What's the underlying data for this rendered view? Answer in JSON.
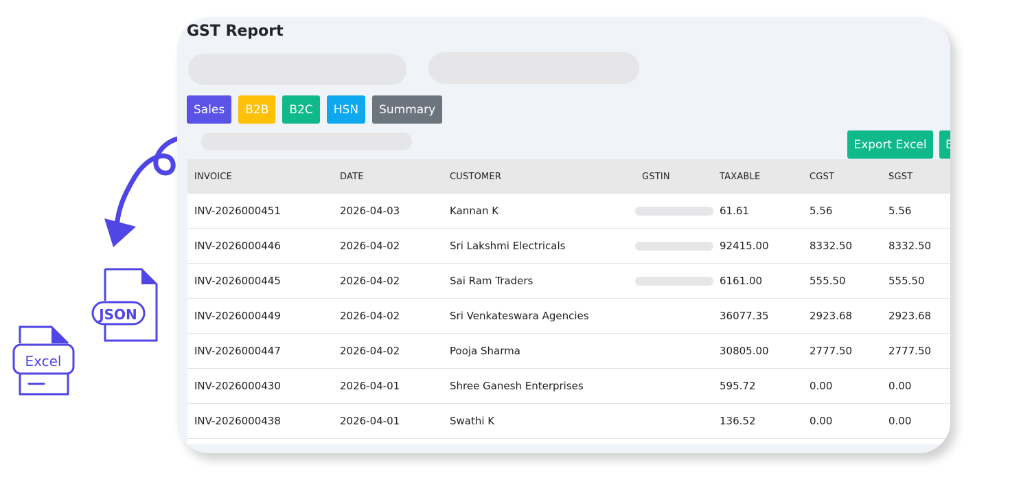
{
  "page": {
    "title": "GST Report"
  },
  "tabs": [
    {
      "label": "Sales",
      "color": "#5b52e8"
    },
    {
      "label": "B2B",
      "color": "#ffc107"
    },
    {
      "label": "B2C",
      "color": "#10b98a"
    },
    {
      "label": "HSN",
      "color": "#0ea8ef"
    },
    {
      "label": "Summary",
      "color": "#6c757d"
    }
  ],
  "actions": {
    "export_excel": "Export Excel",
    "export_next_partial": "E"
  },
  "table": {
    "columns": [
      "INVOICE",
      "DATE",
      "CUSTOMER",
      "GSTIN",
      "TAXABLE",
      "CGST",
      "SGST"
    ],
    "rows": [
      {
        "invoice": "INV-2026000451",
        "date": "2026-04-03",
        "customer": "Kannan K",
        "gstin_masked": true,
        "taxable": "61.61",
        "cgst": "5.56",
        "sgst": "5.56"
      },
      {
        "invoice": "INV-2026000446",
        "date": "2026-04-02",
        "customer": "Sri Lakshmi Electricals",
        "gstin_masked": true,
        "taxable": "92415.00",
        "cgst": "8332.50",
        "sgst": "8332.50"
      },
      {
        "invoice": "INV-2026000445",
        "date": "2026-04-02",
        "customer": "Sai Ram Traders",
        "gstin_masked": true,
        "taxable": "6161.00",
        "cgst": "555.50",
        "sgst": "555.50"
      },
      {
        "invoice": "INV-2026000449",
        "date": "2026-04-02",
        "customer": "Sri Venkateswara Agencies",
        "gstin_masked": false,
        "taxable": "36077.35",
        "cgst": "2923.68",
        "sgst": "2923.68"
      },
      {
        "invoice": "INV-2026000447",
        "date": "2026-04-02",
        "customer": "Pooja Sharma",
        "gstin_masked": false,
        "taxable": "30805.00",
        "cgst": "2777.50",
        "sgst": "2777.50"
      },
      {
        "invoice": "INV-2026000430",
        "date": "2026-04-01",
        "customer": "Shree Ganesh Enterprises",
        "gstin_masked": false,
        "taxable": "595.72",
        "cgst": "0.00",
        "sgst": "0.00"
      },
      {
        "invoice": "INV-2026000438",
        "date": "2026-04-01",
        "customer": "Swathi K",
        "gstin_masked": false,
        "taxable": "136.52",
        "cgst": "0.00",
        "sgst": "0.00"
      }
    ]
  },
  "illustration": {
    "icons": [
      "arrow-icon",
      "json-file-icon",
      "excel-file-icon"
    ],
    "json_label": "JSON",
    "excel_label": "Excel",
    "accent": "#4f46e5"
  }
}
